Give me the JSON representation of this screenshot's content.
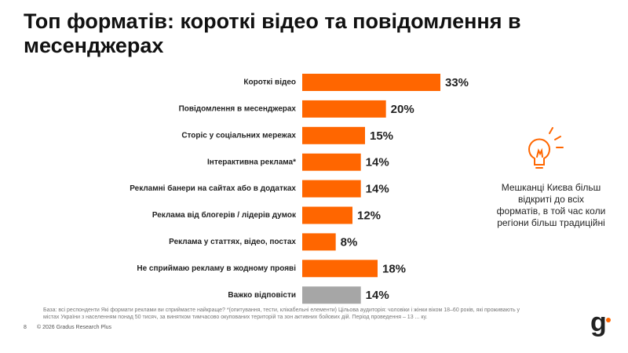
{
  "chart_data": {
    "type": "bar",
    "orientation": "horizontal",
    "title": "Топ форматів: короткі відео та повідомлення в месенджерах",
    "categories": [
      "Короткі відео",
      "Повідомлення в месенджерах",
      "Сторіс у соціальних мережах",
      "Інтерактивна реклама*",
      "Рекламні банери на сайтах або в додатках",
      "Реклама від блогерів / лідерів думок",
      "Реклама у статтях, відео, постах",
      "Не сприймаю рекламу в жодному прояві",
      "Важко відповісти"
    ],
    "values": [
      33,
      20,
      15,
      14,
      14,
      12,
      8,
      18,
      14
    ],
    "value_labels": [
      "33%",
      "20%",
      "15%",
      "14%",
      "14%",
      "12%",
      "8%",
      "18%",
      "14%"
    ],
    "colors": [
      "#ff6600",
      "#ff6600",
      "#ff6600",
      "#ff6600",
      "#ff6600",
      "#ff6600",
      "#ff6600",
      "#ff6600",
      "#a6a6a6"
    ]
  },
  "callout": "Мешканці Києва більш відкриті до всіх форматів, в той час коли регіони більш традиційні",
  "footnote": "База: всі респонденти Які формати реклами ви сприймаєте найкраще? *(опитування, тести, клікабельні елементи)   Цільова аудиторія: чоловіки і жінки віком 18–60 років, які проживають у містах України з населенням понад 50 тисяч, за винятком тимчасово окупованих територій та зон активних бойових дій. Період проведення – 13 ... ку.",
  "page_number": "8",
  "copyright": "© 2026 Gradus Research Plus",
  "logo": "g"
}
